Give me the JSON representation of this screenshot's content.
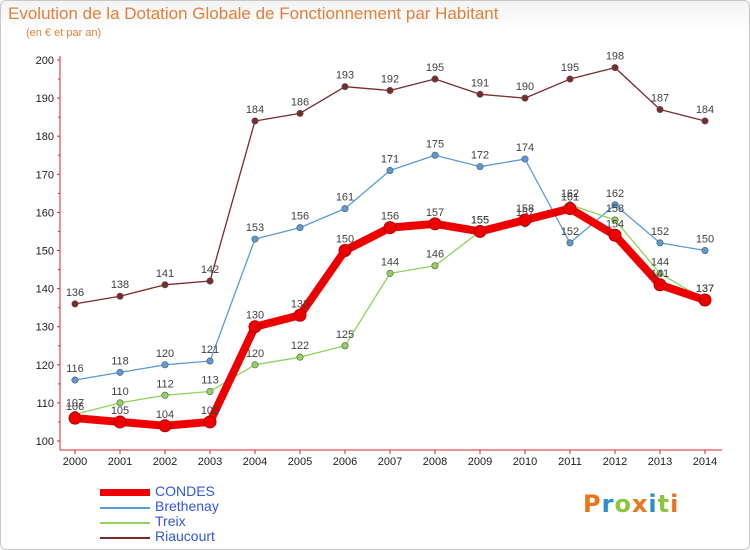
{
  "header": {
    "title": "Evolution de la Dotation Globale de Fonctionnement par Habitant",
    "subtitle": "(en € et par an)"
  },
  "logo": {
    "text": "Proxiti",
    "colors": [
      "#e8741c",
      "#2a8fd0",
      "#8bc63f",
      "#e8741c",
      "#2a8fd0",
      "#8bc63f",
      "#e8741c"
    ]
  },
  "chart_data": {
    "type": "line",
    "title": "Evolution de la Dotation Globale de Fonctionnement par Habitant",
    "subtitle": "(en € et par an)",
    "xlabel": "",
    "ylabel": "",
    "x": [
      "2000",
      "2001",
      "2002",
      "2003",
      "2004",
      "2005",
      "2006",
      "2007",
      "2008",
      "2009",
      "2010",
      "2011",
      "2012",
      "2013",
      "2014"
    ],
    "ylim": [
      100,
      200
    ],
    "yticks": [
      "100",
      "110",
      "120",
      "130",
      "140",
      "150",
      "160",
      "170",
      "180",
      "190",
      "200"
    ],
    "grid": false,
    "legend_position": "bottom-left",
    "series": [
      {
        "name": "Riaucourt",
        "color": "#7a2a2a",
        "values": [
          136,
          138,
          141,
          142,
          184,
          186,
          193,
          192,
          195,
          191,
          190,
          195,
          198,
          187,
          184
        ],
        "labels": [
          "136",
          "138",
          "141",
          "142",
          "184",
          "186",
          "193",
          "192",
          "195",
          "191",
          "190",
          "195",
          "198",
          "187",
          "184"
        ]
      },
      {
        "name": "Brethenay",
        "color": "#5b9bd5",
        "values": [
          116,
          118,
          120,
          121,
          153,
          156,
          161,
          171,
          175,
          172,
          174,
          152,
          162,
          152,
          150
        ],
        "labels": [
          "116",
          "118",
          "120",
          "121",
          "153",
          "156",
          "161",
          "171",
          "175",
          "172",
          "174",
          "152",
          "162",
          "152",
          "150"
        ]
      },
      {
        "name": "Treix",
        "color": "#8fd35a",
        "values": [
          107,
          110,
          112,
          113,
          120,
          122,
          125,
          144,
          146,
          155,
          157,
          162,
          158,
          144,
          137
        ],
        "labels": [
          "107",
          "110",
          "112",
          "113",
          "120",
          "122",
          "125",
          "144",
          "146",
          "155",
          "157",
          "162",
          "158",
          "144",
          "137"
        ]
      },
      {
        "name": "CONDES",
        "color": "#ee0000",
        "values": [
          106,
          105,
          104,
          105,
          130,
          133,
          150,
          156,
          157,
          155,
          158,
          161,
          154,
          141,
          137
        ],
        "labels": [
          "106",
          "105",
          "104",
          "105",
          "130",
          "133",
          "150",
          "156",
          "157",
          "155",
          "158",
          "161",
          "154",
          "141",
          "137"
        ]
      }
    ],
    "legend": [
      "CONDES",
      "Brethenay",
      "Treix",
      "Riaucourt"
    ]
  }
}
